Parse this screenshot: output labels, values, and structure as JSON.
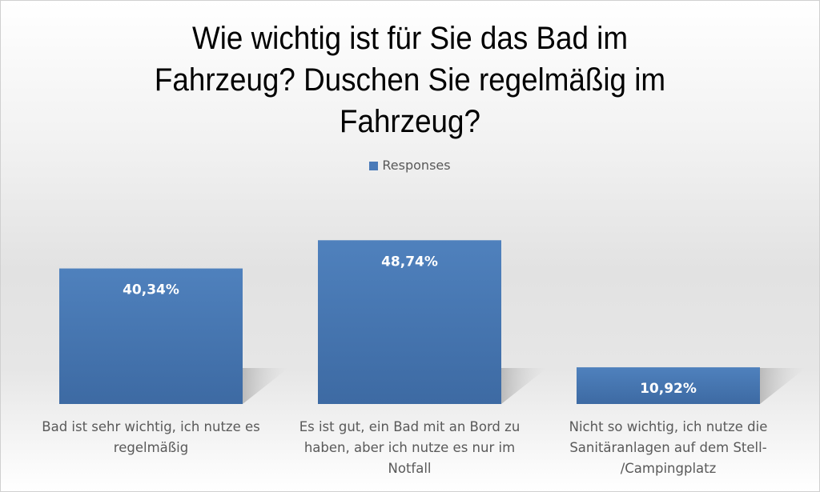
{
  "chart_data": {
    "type": "bar",
    "title": "Wie wichtig ist für Sie das Bad im Fahrzeug? Duschen Sie regelmäßig im Fahrzeug?",
    "title_lines": [
      "Wie wichtig ist für Sie das Bad im",
      "Fahrzeug? Duschen Sie regelmäßig im",
      "Fahrzeug?"
    ],
    "legend": {
      "entries": [
        "Responses"
      ],
      "placement": "top"
    },
    "categories": [
      "Bad ist sehr wichtig, ich nutze es regelmäßig",
      "Es ist gut, ein Bad mit an Bord zu haben, aber ich nutze es nur im Notfall",
      "Nicht so wichtig, ich nutze die Sanitäranlagen auf dem Stell-/Campingplatz"
    ],
    "category_lines": [
      [
        "Bad ist sehr wichtig, ich nutze es",
        "regelmäßig"
      ],
      [
        "Es ist gut, ein Bad mit an Bord zu",
        "haben, aber ich nutze es nur im",
        "Notfall"
      ],
      [
        "Nicht so wichtig, ich nutze die",
        "Sanitäranlagen auf dem Stell-",
        "/Campingplatz"
      ]
    ],
    "series": [
      {
        "name": "Responses",
        "values": [
          40.34,
          48.74,
          10.92
        ],
        "color": "#4a7ab8"
      }
    ],
    "data_labels": [
      "40,34%",
      "48,74%",
      "10,92%"
    ],
    "xlabel": "",
    "ylabel": "",
    "ylim": [
      0,
      50
    ],
    "grid": false
  }
}
